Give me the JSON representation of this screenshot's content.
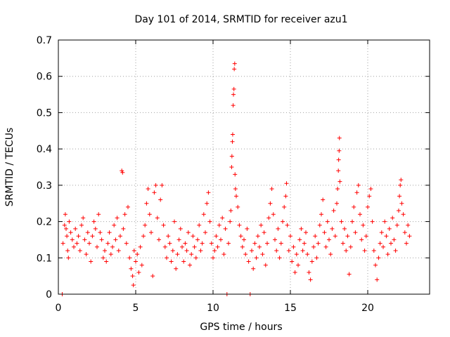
{
  "chart_data": {
    "type": "scatter",
    "title": "Day 101 of 2014, SRMTID for receiver azu1",
    "xlabel": "GPS time / hours",
    "ylabel": "SRMTID / TECUs",
    "xlim": [
      0,
      24
    ],
    "ylim": [
      0,
      0.7
    ],
    "x_ticks": [
      0,
      5,
      10,
      15,
      20
    ],
    "y_ticks": [
      0,
      0.1,
      0.2,
      0.3,
      0.4,
      0.5,
      0.6,
      0.7
    ],
    "x_tick_labels": [
      "0",
      "5",
      "10",
      "15",
      "20"
    ],
    "y_tick_labels": [
      "0",
      "0.1",
      "0.2",
      "0.3",
      "0.4",
      "0.5",
      "0.6",
      "0.7"
    ],
    "grid": true,
    "marker": "plus",
    "color": "#ff0000",
    "series": [
      {
        "name": "azu1",
        "points": [
          [
            0.25,
            0.0
          ],
          [
            0.3,
            0.14
          ],
          [
            0.4,
            0.19
          ],
          [
            0.45,
            0.22
          ],
          [
            0.5,
            0.18
          ],
          [
            0.55,
            0.16
          ],
          [
            0.6,
            0.12
          ],
          [
            0.65,
            0.1
          ],
          [
            0.7,
            0.2
          ],
          [
            0.8,
            0.17
          ],
          [
            0.9,
            0.15
          ],
          [
            1.0,
            0.13
          ],
          [
            1.1,
            0.18
          ],
          [
            1.2,
            0.14
          ],
          [
            1.3,
            0.16
          ],
          [
            1.4,
            0.12
          ],
          [
            1.5,
            0.19
          ],
          [
            1.6,
            0.21
          ],
          [
            1.7,
            0.15
          ],
          [
            1.8,
            0.11
          ],
          [
            1.9,
            0.17
          ],
          [
            2.0,
            0.14
          ],
          [
            2.1,
            0.09
          ],
          [
            2.2,
            0.16
          ],
          [
            2.3,
            0.2
          ],
          [
            2.4,
            0.18
          ],
          [
            2.5,
            0.13
          ],
          [
            2.6,
            0.22
          ],
          [
            2.7,
            0.17
          ],
          [
            2.8,
            0.15
          ],
          [
            2.9,
            0.1
          ],
          [
            3.0,
            0.12
          ],
          [
            3.1,
            0.09
          ],
          [
            3.2,
            0.14
          ],
          [
            3.3,
            0.17
          ],
          [
            3.4,
            0.11
          ],
          [
            3.5,
            0.13
          ],
          [
            3.6,
            0.19
          ],
          [
            3.7,
            0.15
          ],
          [
            3.8,
            0.21
          ],
          [
            3.9,
            0.12
          ],
          [
            4.0,
            0.16
          ],
          [
            4.1,
            0.34
          ],
          [
            4.15,
            0.335
          ],
          [
            4.2,
            0.18
          ],
          [
            4.3,
            0.22
          ],
          [
            4.4,
            0.14
          ],
          [
            4.5,
            0.24
          ],
          [
            4.6,
            0.1
          ],
          [
            4.7,
            0.07
          ],
          [
            4.8,
            0.05
          ],
          [
            4.85,
            0.025
          ],
          [
            4.9,
            0.12
          ],
          [
            5.0,
            0.09
          ],
          [
            5.1,
            0.11
          ],
          [
            5.2,
            0.06
          ],
          [
            5.3,
            0.13
          ],
          [
            5.4,
            0.08
          ],
          [
            5.5,
            0.16
          ],
          [
            5.6,
            0.19
          ],
          [
            5.7,
            0.25
          ],
          [
            5.8,
            0.29
          ],
          [
            5.9,
            0.22
          ],
          [
            6.0,
            0.17
          ],
          [
            6.1,
            0.05
          ],
          [
            6.2,
            0.28
          ],
          [
            6.3,
            0.3
          ],
          [
            6.4,
            0.21
          ],
          [
            6.5,
            0.15
          ],
          [
            6.6,
            0.26
          ],
          [
            6.7,
            0.3
          ],
          [
            6.8,
            0.19
          ],
          [
            6.9,
            0.13
          ],
          [
            7.0,
            0.1
          ],
          [
            7.1,
            0.16
          ],
          [
            7.2,
            0.14
          ],
          [
            7.3,
            0.09
          ],
          [
            7.4,
            0.12
          ],
          [
            7.5,
            0.2
          ],
          [
            7.6,
            0.07
          ],
          [
            7.7,
            0.11
          ],
          [
            7.8,
            0.15
          ],
          [
            7.9,
            0.18
          ],
          [
            8.0,
            0.13
          ],
          [
            8.1,
            0.09
          ],
          [
            8.2,
            0.14
          ],
          [
            8.3,
            0.12
          ],
          [
            8.4,
            0.17
          ],
          [
            8.5,
            0.08
          ],
          [
            8.6,
            0.11
          ],
          [
            8.7,
            0.16
          ],
          [
            8.8,
            0.13
          ],
          [
            8.9,
            0.1
          ],
          [
            9.0,
            0.15
          ],
          [
            9.1,
            0.19
          ],
          [
            9.2,
            0.12
          ],
          [
            9.3,
            0.14
          ],
          [
            9.4,
            0.22
          ],
          [
            9.5,
            0.17
          ],
          [
            9.6,
            0.25
          ],
          [
            9.7,
            0.28
          ],
          [
            9.8,
            0.2
          ],
          [
            9.9,
            0.14
          ],
          [
            10.0,
            0.1
          ],
          [
            10.1,
            0.12
          ],
          [
            10.2,
            0.16
          ],
          [
            10.3,
            0.13
          ],
          [
            10.4,
            0.19
          ],
          [
            10.5,
            0.15
          ],
          [
            10.6,
            0.21
          ],
          [
            10.7,
            0.11
          ],
          [
            10.8,
            0.18
          ],
          [
            10.9,
            0.0
          ],
          [
            11.0,
            0.14
          ],
          [
            11.1,
            0.2
          ],
          [
            11.15,
            0.23
          ],
          [
            11.2,
            0.35
          ],
          [
            11.22,
            0.38
          ],
          [
            11.25,
            0.42
          ],
          [
            11.27,
            0.44
          ],
          [
            11.3,
            0.52
          ],
          [
            11.32,
            0.55
          ],
          [
            11.35,
            0.565
          ],
          [
            11.37,
            0.62
          ],
          [
            11.4,
            0.635
          ],
          [
            11.42,
            0.33
          ],
          [
            11.45,
            0.29
          ],
          [
            11.5,
            0.27
          ],
          [
            11.6,
            0.24
          ],
          [
            11.7,
            0.19
          ],
          [
            11.8,
            0.16
          ],
          [
            11.9,
            0.13
          ],
          [
            12.0,
            0.15
          ],
          [
            12.1,
            0.11
          ],
          [
            12.2,
            0.18
          ],
          [
            12.3,
            0.09
          ],
          [
            12.4,
            0.0
          ],
          [
            12.5,
            0.12
          ],
          [
            12.6,
            0.07
          ],
          [
            12.7,
            0.14
          ],
          [
            12.8,
            0.1
          ],
          [
            12.9,
            0.16
          ],
          [
            13.0,
            0.13
          ],
          [
            13.1,
            0.19
          ],
          [
            13.2,
            0.11
          ],
          [
            13.3,
            0.17
          ],
          [
            13.4,
            0.08
          ],
          [
            13.5,
            0.14
          ],
          [
            13.6,
            0.21
          ],
          [
            13.7,
            0.25
          ],
          [
            13.8,
            0.29
          ],
          [
            13.9,
            0.22
          ],
          [
            14.0,
            0.15
          ],
          [
            14.1,
            0.12
          ],
          [
            14.2,
            0.18
          ],
          [
            14.3,
            0.1
          ],
          [
            14.4,
            0.14
          ],
          [
            14.5,
            0.2
          ],
          [
            14.6,
            0.24
          ],
          [
            14.7,
            0.27
          ],
          [
            14.75,
            0.305
          ],
          [
            14.8,
            0.19
          ],
          [
            14.9,
            0.12
          ],
          [
            15.0,
            0.16
          ],
          [
            15.1,
            0.09
          ],
          [
            15.2,
            0.13
          ],
          [
            15.3,
            0.06
          ],
          [
            15.4,
            0.11
          ],
          [
            15.5,
            0.08
          ],
          [
            15.6,
            0.15
          ],
          [
            15.7,
            0.18
          ],
          [
            15.8,
            0.12
          ],
          [
            15.9,
            0.14
          ],
          [
            16.0,
            0.17
          ],
          [
            16.1,
            0.11
          ],
          [
            16.2,
            0.06
          ],
          [
            16.3,
            0.04
          ],
          [
            16.4,
            0.09
          ],
          [
            16.5,
            0.13
          ],
          [
            16.6,
            0.16
          ],
          [
            16.7,
            0.1
          ],
          [
            16.8,
            0.14
          ],
          [
            16.9,
            0.19
          ],
          [
            17.0,
            0.22
          ],
          [
            17.1,
            0.26
          ],
          [
            17.2,
            0.17
          ],
          [
            17.3,
            0.13
          ],
          [
            17.4,
            0.2
          ],
          [
            17.5,
            0.15
          ],
          [
            17.6,
            0.11
          ],
          [
            17.7,
            0.18
          ],
          [
            17.8,
            0.23
          ],
          [
            17.9,
            0.16
          ],
          [
            18.0,
            0.25
          ],
          [
            18.05,
            0.29
          ],
          [
            18.1,
            0.34
          ],
          [
            18.12,
            0.37
          ],
          [
            18.15,
            0.395
          ],
          [
            18.17,
            0.43
          ],
          [
            18.2,
            0.31
          ],
          [
            18.3,
            0.2
          ],
          [
            18.4,
            0.14
          ],
          [
            18.5,
            0.18
          ],
          [
            18.6,
            0.12
          ],
          [
            18.7,
            0.16
          ],
          [
            18.8,
            0.055
          ],
          [
            18.9,
            0.13
          ],
          [
            19.0,
            0.2
          ],
          [
            19.1,
            0.24
          ],
          [
            19.2,
            0.17
          ],
          [
            19.3,
            0.28
          ],
          [
            19.4,
            0.3
          ],
          [
            19.5,
            0.22
          ],
          [
            19.6,
            0.15
          ],
          [
            19.7,
            0.19
          ],
          [
            19.8,
            0.12
          ],
          [
            19.9,
            0.16
          ],
          [
            20.0,
            0.24
          ],
          [
            20.1,
            0.27
          ],
          [
            20.2,
            0.29
          ],
          [
            20.3,
            0.2
          ],
          [
            20.4,
            0.12
          ],
          [
            20.5,
            0.08
          ],
          [
            20.6,
            0.04
          ],
          [
            20.7,
            0.1
          ],
          [
            20.8,
            0.14
          ],
          [
            20.9,
            0.17
          ],
          [
            21.0,
            0.13
          ],
          [
            21.1,
            0.2
          ],
          [
            21.2,
            0.16
          ],
          [
            21.3,
            0.11
          ],
          [
            21.4,
            0.18
          ],
          [
            21.5,
            0.14
          ],
          [
            21.6,
            0.21
          ],
          [
            21.7,
            0.15
          ],
          [
            21.8,
            0.12
          ],
          [
            21.9,
            0.19
          ],
          [
            22.0,
            0.23
          ],
          [
            22.05,
            0.27
          ],
          [
            22.1,
            0.3
          ],
          [
            22.15,
            0.315
          ],
          [
            22.2,
            0.25
          ],
          [
            22.3,
            0.22
          ],
          [
            22.4,
            0.17
          ],
          [
            22.5,
            0.14
          ],
          [
            22.6,
            0.19
          ],
          [
            22.7,
            0.16
          ]
        ]
      }
    ]
  }
}
